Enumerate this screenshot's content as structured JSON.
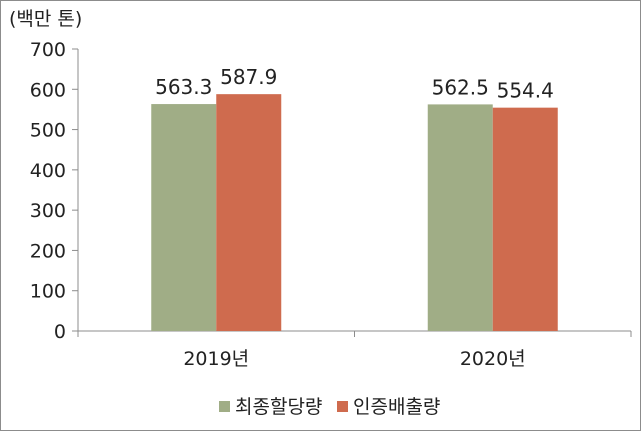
{
  "chart_data": {
    "type": "bar",
    "unit_label": "(백만 톤)",
    "categories": [
      "2019년",
      "2020년"
    ],
    "series": [
      {
        "name": "최종할당량",
        "values": [
          563.3,
          562.5
        ],
        "color": "#a0ad86"
      },
      {
        "name": "인증배출량",
        "values": [
          587.9,
          554.4
        ],
        "color": "#cf6b4e"
      }
    ],
    "ylim": [
      0,
      700
    ],
    "yticks": [
      0,
      100,
      200,
      300,
      400,
      500,
      600,
      700
    ],
    "grid": false,
    "legend_position": "bottom"
  }
}
